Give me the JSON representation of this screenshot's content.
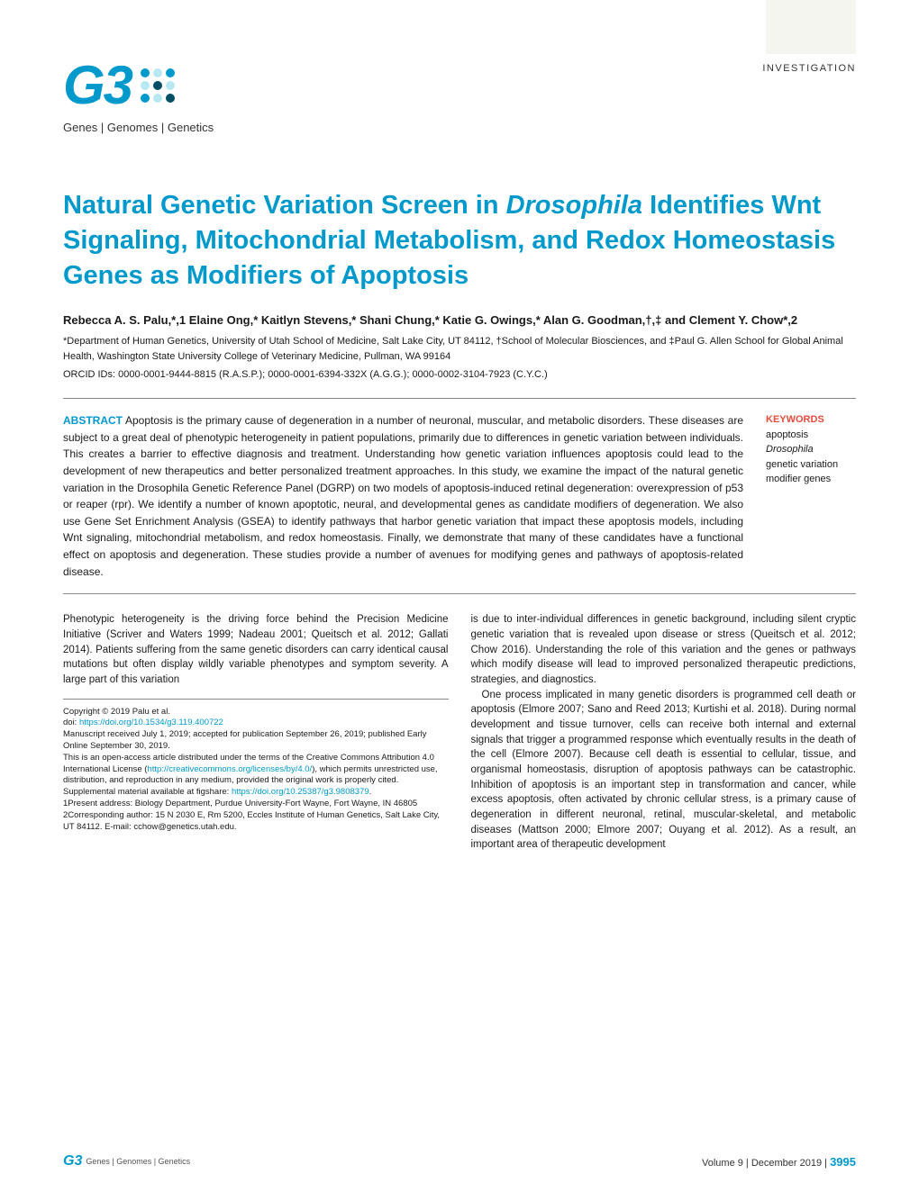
{
  "header": {
    "article_type": "INVESTIGATION",
    "logo_text": "G3",
    "logo_subtitle": "Genes | Genomes | Genetics",
    "logo_color": "#0099cc"
  },
  "title": {
    "part1": "Natural Genetic Variation Screen in ",
    "italic1": "Drosophila",
    "part2": " Identifies Wnt Signaling, Mitochondrial Metabolism, and Redox Homeostasis Genes as Modifiers of Apoptosis"
  },
  "authors": "Rebecca A. S. Palu,*,1 Elaine Ong,* Kaitlyn Stevens,* Shani Chung,* Katie G. Owings,* Alan G. Goodman,†,‡ and Clement Y. Chow*,2",
  "affiliations": "*Department of Human Genetics, University of Utah School of Medicine, Salt Lake City, UT 84112, †School of Molecular Biosciences, and ‡Paul G. Allen School for Global Animal Health, Washington State University College of Veterinary Medicine, Pullman, WA 99164",
  "orcid": "ORCID IDs: 0000-0001-9444-8815 (R.A.S.P.); 0000-0001-6394-332X (A.G.G.); 0000-0002-3104-7923 (C.Y.C.)",
  "abstract": {
    "label": "ABSTRACT",
    "text": " Apoptosis is the primary cause of degeneration in a number of neuronal, muscular, and metabolic disorders. These diseases are subject to a great deal of phenotypic heterogeneity in patient populations, primarily due to differences in genetic variation between individuals. This creates a barrier to effective diagnosis and treatment. Understanding how genetic variation influences apoptosis could lead to the development of new therapeutics and better personalized treatment approaches. In this study, we examine the impact of the natural genetic variation in the Drosophila Genetic Reference Panel (DGRP) on two models of apoptosis-induced retinal degeneration: overexpression of p53 or reaper (rpr). We identify a number of known apoptotic, neural, and developmental genes as candidate modifiers of degeneration. We also use Gene Set Enrichment Analysis (GSEA) to identify pathways that harbor genetic variation that impact these apoptosis models, including Wnt signaling, mitochondrial metabolism, and redox homeostasis. Finally, we demonstrate that many of these candidates have a functional effect on apoptosis and degeneration. These studies provide a number of avenues for modifying genes and pathways of apoptosis-related disease."
  },
  "keywords": {
    "label": "KEYWORDS",
    "items": [
      "apoptosis",
      "Drosophila",
      "genetic variation",
      "modifier genes"
    ]
  },
  "body": {
    "col1_p1": "Phenotypic heterogeneity is the driving force behind the Precision Medicine Initiative (Scriver and Waters 1999; Nadeau 2001; Queitsch et al. 2012; Gallati 2014). Patients suffering from the same genetic disorders can carry identical causal mutations but often display wildly variable phenotypes and symptom severity. A large part of this variation",
    "col2_p1": "is due to inter-individual differences in genetic background, including silent cryptic genetic variation that is revealed upon disease or stress (Queitsch et al. 2012; Chow 2016). Understanding the role of this variation and the genes or pathways which modify disease will lead to improved personalized therapeutic predictions, strategies, and diagnostics.",
    "col2_p2": "One process implicated in many genetic disorders is programmed cell death or apoptosis (Elmore 2007; Sano and Reed 2013; Kurtishi et al. 2018). During normal development and tissue turnover, cells can receive both internal and external signals that trigger a programmed response which eventually results in the death of the cell (Elmore 2007). Because cell death is essential to cellular, tissue, and organismal homeostasis, disruption of apoptosis pathways can be catastrophic. Inhibition of apoptosis is an important step in transformation and cancer, while excess apoptosis, often activated by chronic cellular stress, is a primary cause of degeneration in different neuronal, retinal, muscular-skeletal, and metabolic diseases (Mattson 2000; Elmore 2007; Ouyang et al. 2012). As a result, an important area of therapeutic development"
  },
  "footnotes": {
    "copyright": "Copyright © 2019 Palu et al.",
    "doi_label": "doi: ",
    "doi_link": "https://doi.org/10.1534/g3.119.400722",
    "manuscript": "Manuscript received July 1, 2019; accepted for publication September 26, 2019; published Early Online September 30, 2019.",
    "license_pre": "This is an open-access article distributed under the terms of the Creative Commons Attribution 4.0 International License (",
    "license_link": "http://creativecommons.org/licenses/by/4.0/",
    "license_post": "), which permits unrestricted use, distribution, and reproduction in any medium, provided the original work is properly cited.",
    "supplemental_pre": "Supplemental material available at figshare: ",
    "supplemental_link": "https://doi.org/10.25387/g3.9808379",
    "supplemental_post": ".",
    "present_address": "1Present address: Biology Department, Purdue University-Fort Wayne, Fort Wayne, IN 46805",
    "corresponding": "2Corresponding author: 15 N 2030 E, Rm 5200, Eccles Institute of Human Genetics, Salt Lake City, UT 84112. E-mail: cchow@genetics.utah.edu."
  },
  "footer": {
    "logo_text": "G3",
    "logo_subtitle": "Genes | Genomes | Genetics",
    "volume_text": "Volume 9  |  December 2019  |",
    "page_number": "3995"
  },
  "colors": {
    "primary": "#0099cc",
    "keyword_label": "#e74c3c",
    "background": "#ffffff",
    "text": "#1a1a1a"
  }
}
